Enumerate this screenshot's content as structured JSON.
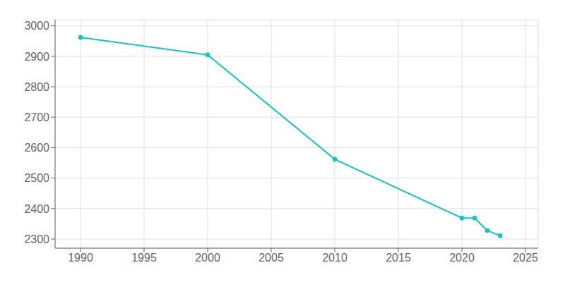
{
  "chart_data": {
    "type": "line",
    "x": [
      1990,
      2000,
      2010,
      2020,
      2021,
      2022,
      2023
    ],
    "values": [
      2962,
      2905,
      2562,
      2369,
      2369,
      2328,
      2311
    ],
    "color": "#17C3C3",
    "marker": "circle",
    "xlim": [
      1988,
      2026
    ],
    "ylim": [
      2270,
      3020
    ],
    "xticks": [
      1990,
      1995,
      2000,
      2005,
      2010,
      2015,
      2020,
      2025
    ],
    "yticks": [
      2300,
      2400,
      2500,
      2600,
      2700,
      2800,
      2900,
      3000
    ],
    "grid": true
  }
}
